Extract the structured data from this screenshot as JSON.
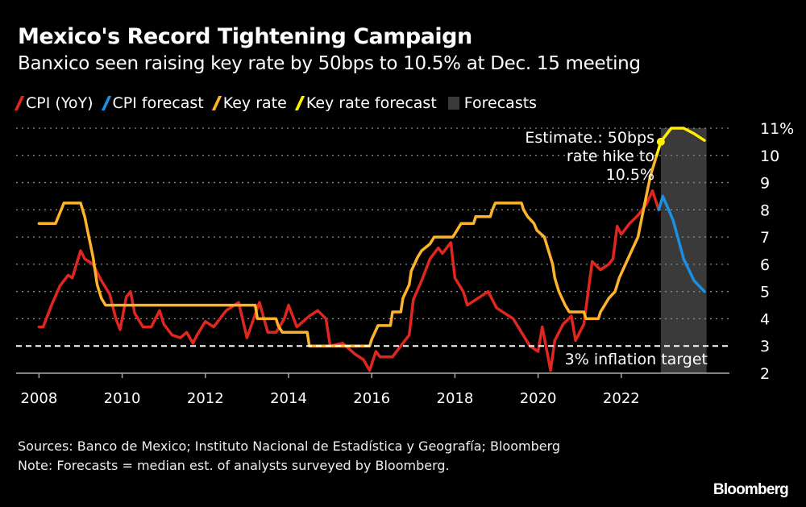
{
  "title": "Mexico's Record Tightening Campaign",
  "subtitle": "Banxico seen raising key rate by 50bps to 10.5% at Dec. 15 meeting",
  "legend": [
    {
      "label": "CPI (YoY)",
      "color": "#e0261f"
    },
    {
      "label": "CPI forecast",
      "color": "#1a8fe3"
    },
    {
      "label": "Key rate",
      "color": "#fdb42a"
    },
    {
      "label": "Key rate forecast",
      "color": "#ffee00"
    },
    {
      "label": "Forecasts",
      "color": "#3a3a3a"
    }
  ],
  "sources": "Sources: Banco de Mexico; Instituto Nacional de Estadística y Geografía; Bloomberg",
  "note": "Note: Forecasts = median est. of analysts surveyed by Bloomberg.",
  "logo": "Bloomberg",
  "chart_data": {
    "type": "line",
    "xlim": [
      2007.45,
      2024.6
    ],
    "ylim": [
      2,
      11
    ],
    "x_ticks": [
      2008,
      2010,
      2012,
      2014,
      2016,
      2018,
      2020,
      2022
    ],
    "x_tick_labels": [
      "2008",
      "2010",
      "2012",
      "2014",
      "2016",
      "2018",
      "2020",
      "2022"
    ],
    "y_ticks": [
      2,
      3,
      4,
      5,
      6,
      7,
      8,
      9,
      10,
      11
    ],
    "y_tick_labels": [
      "2",
      "3",
      "4",
      "5",
      "6",
      "7",
      "8",
      "9",
      "10",
      "11%"
    ],
    "grid": true,
    "legend_position": "top-left",
    "forecast_region": [
      2022.95,
      2024.05
    ],
    "target_line": {
      "value": 3,
      "label": "3% inflation target"
    },
    "annotation": {
      "lines": [
        "Estimate.: 50bps",
        "rate hike to",
        "10.5%"
      ],
      "point": [
        2022.95,
        10.5
      ]
    },
    "series": [
      {
        "name": "CPI (YoY)",
        "color": "#e0261f",
        "points": [
          [
            2008.0,
            3.7
          ],
          [
            2008.1,
            3.7
          ],
          [
            2008.3,
            4.5
          ],
          [
            2008.5,
            5.2
          ],
          [
            2008.7,
            5.6
          ],
          [
            2008.8,
            5.5
          ],
          [
            2009.0,
            6.5
          ],
          [
            2009.1,
            6.2
          ],
          [
            2009.3,
            6.0
          ],
          [
            2009.5,
            5.4
          ],
          [
            2009.7,
            4.9
          ],
          [
            2009.85,
            4.0
          ],
          [
            2009.95,
            3.6
          ],
          [
            2010.1,
            4.8
          ],
          [
            2010.2,
            5.0
          ],
          [
            2010.3,
            4.2
          ],
          [
            2010.5,
            3.7
          ],
          [
            2010.7,
            3.7
          ],
          [
            2010.9,
            4.3
          ],
          [
            2011.0,
            3.8
          ],
          [
            2011.2,
            3.4
          ],
          [
            2011.4,
            3.3
          ],
          [
            2011.55,
            3.5
          ],
          [
            2011.7,
            3.1
          ],
          [
            2011.8,
            3.4
          ],
          [
            2012.0,
            3.9
          ],
          [
            2012.2,
            3.7
          ],
          [
            2012.5,
            4.3
          ],
          [
            2012.8,
            4.6
          ],
          [
            2013.0,
            3.3
          ],
          [
            2013.3,
            4.6
          ],
          [
            2013.5,
            3.5
          ],
          [
            2013.7,
            3.5
          ],
          [
            2013.9,
            4.0
          ],
          [
            2014.0,
            4.5
          ],
          [
            2014.2,
            3.7
          ],
          [
            2014.5,
            4.1
          ],
          [
            2014.7,
            4.3
          ],
          [
            2014.9,
            4.0
          ],
          [
            2015.0,
            3.0
          ],
          [
            2015.3,
            3.1
          ],
          [
            2015.6,
            2.7
          ],
          [
            2015.8,
            2.5
          ],
          [
            2015.95,
            2.1
          ],
          [
            2016.1,
            2.8
          ],
          [
            2016.2,
            2.6
          ],
          [
            2016.5,
            2.6
          ],
          [
            2016.7,
            3.0
          ],
          [
            2016.9,
            3.4
          ],
          [
            2017.0,
            4.7
          ],
          [
            2017.2,
            5.4
          ],
          [
            2017.4,
            6.2
          ],
          [
            2017.6,
            6.6
          ],
          [
            2017.7,
            6.4
          ],
          [
            2017.9,
            6.8
          ],
          [
            2018.0,
            5.5
          ],
          [
            2018.2,
            5.0
          ],
          [
            2018.3,
            4.5
          ],
          [
            2018.6,
            4.8
          ],
          [
            2018.8,
            5.0
          ],
          [
            2019.0,
            4.4
          ],
          [
            2019.2,
            4.2
          ],
          [
            2019.4,
            4.0
          ],
          [
            2019.6,
            3.5
          ],
          [
            2019.8,
            3.0
          ],
          [
            2020.0,
            2.8
          ],
          [
            2020.1,
            3.7
          ],
          [
            2020.3,
            2.1
          ],
          [
            2020.4,
            3.2
          ],
          [
            2020.6,
            3.8
          ],
          [
            2020.8,
            4.1
          ],
          [
            2020.9,
            3.2
          ],
          [
            2021.1,
            3.8
          ],
          [
            2021.3,
            6.1
          ],
          [
            2021.5,
            5.8
          ],
          [
            2021.7,
            6.0
          ],
          [
            2021.8,
            6.2
          ],
          [
            2021.9,
            7.4
          ],
          [
            2022.0,
            7.1
          ],
          [
            2022.2,
            7.5
          ],
          [
            2022.4,
            7.8
          ],
          [
            2022.6,
            8.2
          ],
          [
            2022.75,
            8.7
          ],
          [
            2022.9,
            8.0
          ]
        ]
      },
      {
        "name": "CPI forecast",
        "color": "#1a8fe3",
        "points": [
          [
            2022.9,
            8.0
          ],
          [
            2023.0,
            8.5
          ],
          [
            2023.25,
            7.6
          ],
          [
            2023.5,
            6.2
          ],
          [
            2023.75,
            5.4
          ],
          [
            2024.0,
            5.0
          ]
        ]
      },
      {
        "name": "Key rate",
        "color": "#fdb42a",
        "points": [
          [
            2008.0,
            7.5
          ],
          [
            2008.4,
            7.5
          ],
          [
            2008.6,
            8.25
          ],
          [
            2009.0,
            8.25
          ],
          [
            2009.1,
            7.75
          ],
          [
            2009.2,
            7.0
          ],
          [
            2009.3,
            6.25
          ],
          [
            2009.4,
            5.25
          ],
          [
            2009.5,
            4.75
          ],
          [
            2009.6,
            4.5
          ],
          [
            2013.2,
            4.5
          ],
          [
            2013.25,
            4.0
          ],
          [
            2013.7,
            4.0
          ],
          [
            2013.75,
            3.75
          ],
          [
            2013.85,
            3.5
          ],
          [
            2014.45,
            3.5
          ],
          [
            2014.5,
            3.0
          ],
          [
            2015.95,
            3.0
          ],
          [
            2016.0,
            3.25
          ],
          [
            2016.15,
            3.75
          ],
          [
            2016.45,
            3.75
          ],
          [
            2016.5,
            4.25
          ],
          [
            2016.7,
            4.25
          ],
          [
            2016.75,
            4.75
          ],
          [
            2016.9,
            5.25
          ],
          [
            2016.95,
            5.75
          ],
          [
            2017.1,
            6.25
          ],
          [
            2017.2,
            6.5
          ],
          [
            2017.4,
            6.75
          ],
          [
            2017.5,
            7.0
          ],
          [
            2017.95,
            7.0
          ],
          [
            2018.05,
            7.25
          ],
          [
            2018.15,
            7.5
          ],
          [
            2018.45,
            7.5
          ],
          [
            2018.5,
            7.75
          ],
          [
            2018.85,
            7.75
          ],
          [
            2018.9,
            8.0
          ],
          [
            2018.97,
            8.25
          ],
          [
            2019.6,
            8.25
          ],
          [
            2019.65,
            8.0
          ],
          [
            2019.75,
            7.75
          ],
          [
            2019.9,
            7.5
          ],
          [
            2019.97,
            7.25
          ],
          [
            2020.15,
            7.0
          ],
          [
            2020.25,
            6.5
          ],
          [
            2020.35,
            6.0
          ],
          [
            2020.4,
            5.5
          ],
          [
            2020.5,
            5.0
          ],
          [
            2020.65,
            4.5
          ],
          [
            2020.75,
            4.25
          ],
          [
            2021.1,
            4.25
          ],
          [
            2021.15,
            4.0
          ],
          [
            2021.45,
            4.0
          ],
          [
            2021.5,
            4.25
          ],
          [
            2021.6,
            4.5
          ],
          [
            2021.7,
            4.75
          ],
          [
            2021.85,
            5.0
          ],
          [
            2021.95,
            5.5
          ],
          [
            2022.1,
            6.0
          ],
          [
            2022.25,
            6.5
          ],
          [
            2022.4,
            7.0
          ],
          [
            2022.5,
            7.75
          ],
          [
            2022.6,
            8.5
          ],
          [
            2022.7,
            9.25
          ],
          [
            2022.85,
            10.0
          ]
        ]
      },
      {
        "name": "Key rate forecast",
        "color": "#ffee00",
        "points": [
          [
            2022.85,
            10.0
          ],
          [
            2022.95,
            10.5
          ],
          [
            2023.0,
            10.6
          ],
          [
            2023.2,
            11.0
          ],
          [
            2023.5,
            11.0
          ],
          [
            2023.75,
            10.8
          ],
          [
            2024.0,
            10.55
          ]
        ]
      }
    ]
  }
}
